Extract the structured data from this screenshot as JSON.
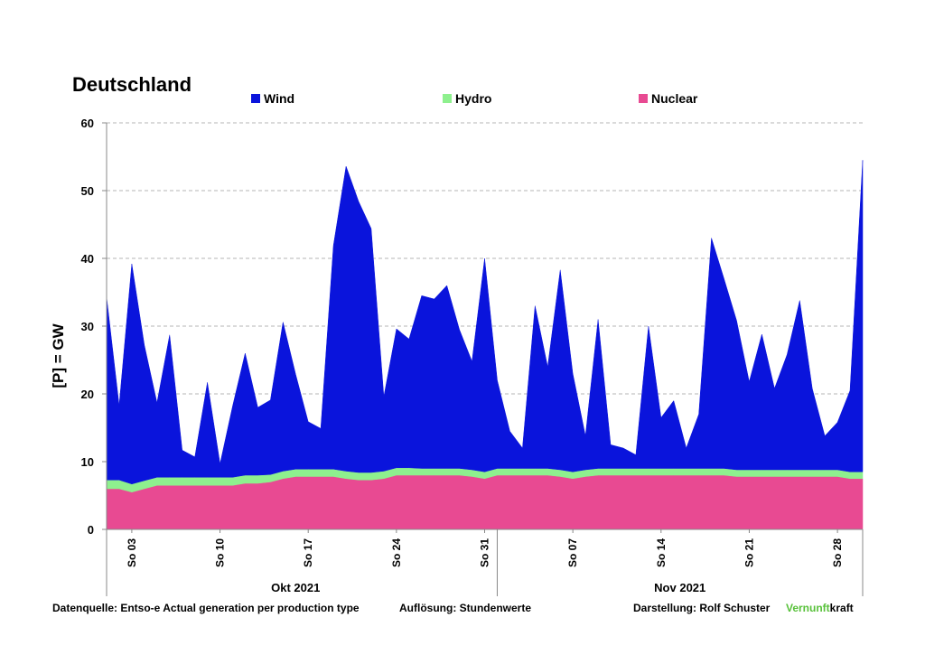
{
  "chart_data": {
    "type": "area",
    "title": "Deutschland",
    "ylabel": "[P]  =  GW",
    "xlabel": "",
    "ylim": [
      0,
      60
    ],
    "yticks": [
      0,
      10,
      20,
      30,
      40,
      50,
      60
    ],
    "grid": true,
    "legend_position": "top",
    "stacked": true,
    "x_range_days": [
      1,
      61
    ],
    "xtick_labels": [
      {
        "day": 3,
        "label": "So 03"
      },
      {
        "day": 10,
        "label": "So 10"
      },
      {
        "day": 17,
        "label": "So 17"
      },
      {
        "day": 24,
        "label": "So 24"
      },
      {
        "day": 31,
        "label": "So 31"
      },
      {
        "day": 38,
        "label": "So 07"
      },
      {
        "day": 45,
        "label": "So 14"
      },
      {
        "day": 52,
        "label": "So 21"
      },
      {
        "day": 59,
        "label": "So 28"
      }
    ],
    "months": [
      {
        "label": "Okt 2021",
        "center_day": 16
      },
      {
        "label": "Nov 2021",
        "center_day": 46.5
      }
    ],
    "month_separator_day": 32,
    "series": [
      {
        "name": "Nuclear",
        "color": "#e84a92",
        "x": [
          1,
          2,
          3,
          4,
          5,
          6,
          7,
          8,
          9,
          10,
          11,
          12,
          13,
          14,
          15,
          16,
          17,
          18,
          19,
          20,
          21,
          22,
          23,
          24,
          25,
          26,
          27,
          28,
          29,
          30,
          31,
          32,
          33,
          34,
          35,
          36,
          37,
          38,
          39,
          40,
          41,
          42,
          43,
          44,
          45,
          46,
          47,
          48,
          49,
          50,
          51,
          52,
          53,
          54,
          55,
          56,
          57,
          58,
          59,
          60,
          61
        ],
        "values": [
          6.0,
          6.0,
          5.5,
          6.0,
          6.5,
          6.5,
          6.5,
          6.5,
          6.5,
          6.5,
          6.5,
          6.8,
          6.8,
          7.0,
          7.5,
          7.8,
          7.8,
          7.8,
          7.8,
          7.5,
          7.3,
          7.3,
          7.5,
          8.0,
          8.0,
          8.0,
          8.0,
          8.0,
          8.0,
          7.8,
          7.5,
          8.0,
          8.0,
          8.0,
          8.0,
          8.0,
          7.8,
          7.5,
          7.8,
          8.0,
          8.0,
          8.0,
          8.0,
          8.0,
          8.0,
          8.0,
          8.0,
          8.0,
          8.0,
          8.0,
          7.8,
          7.8,
          7.8,
          7.8,
          7.8,
          7.8,
          7.8,
          7.8,
          7.8,
          7.5,
          7.5
        ]
      },
      {
        "name": "Hydro",
        "color": "#8ef08e",
        "x": [
          1,
          2,
          3,
          4,
          5,
          6,
          7,
          8,
          9,
          10,
          11,
          12,
          13,
          14,
          15,
          16,
          17,
          18,
          19,
          20,
          21,
          22,
          23,
          24,
          25,
          26,
          27,
          28,
          29,
          30,
          31,
          32,
          33,
          34,
          35,
          36,
          37,
          38,
          39,
          40,
          41,
          42,
          43,
          44,
          45,
          46,
          47,
          48,
          49,
          50,
          51,
          52,
          53,
          54,
          55,
          56,
          57,
          58,
          59,
          60,
          61
        ],
        "values": [
          1.3,
          1.3,
          1.2,
          1.2,
          1.2,
          1.2,
          1.2,
          1.2,
          1.2,
          1.2,
          1.2,
          1.2,
          1.2,
          1.1,
          1.1,
          1.1,
          1.1,
          1.1,
          1.1,
          1.1,
          1.1,
          1.1,
          1.1,
          1.1,
          1.1,
          1.0,
          1.0,
          1.0,
          1.0,
          1.0,
          1.0,
          1.0,
          1.0,
          1.0,
          1.0,
          1.0,
          1.0,
          1.0,
          1.0,
          1.0,
          1.0,
          1.0,
          1.0,
          1.0,
          1.0,
          1.0,
          1.0,
          1.0,
          1.0,
          1.0,
          1.0,
          1.0,
          1.0,
          1.0,
          1.0,
          1.0,
          1.0,
          1.0,
          1.0,
          1.0,
          1.0
        ]
      },
      {
        "name": "Wind",
        "color": "#0a14dc",
        "x": [
          1,
          2,
          3,
          4,
          5,
          6,
          7,
          8,
          9,
          10,
          11,
          12,
          13,
          14,
          15,
          16,
          17,
          18,
          19,
          20,
          21,
          22,
          23,
          24,
          25,
          26,
          27,
          28,
          29,
          30,
          31,
          32,
          33,
          34,
          35,
          36,
          37,
          38,
          39,
          40,
          41,
          42,
          43,
          44,
          45,
          46,
          47,
          48,
          49,
          50,
          51,
          52,
          53,
          54,
          55,
          56,
          57,
          58,
          59,
          60,
          61
        ],
        "values": [
          27.0,
          11.0,
          32.5,
          20.0,
          11.0,
          21.0,
          4.0,
          3.0,
          14.0,
          2.0,
          10.5,
          18.0,
          10.0,
          11.0,
          22.0,
          14.0,
          7.0,
          6.0,
          33.0,
          45.0,
          40.0,
          36.0,
          11.0,
          20.5,
          19.0,
          25.5,
          25.0,
          27.0,
          20.5,
          16.0,
          31.5,
          13.0,
          5.5,
          3.0,
          24.0,
          15.0,
          29.5,
          14.5,
          5.0,
          22.0,
          3.5,
          3.0,
          2.0,
          21.0,
          7.5,
          10.0,
          3.0,
          8.0,
          34.0,
          28.0,
          22.0,
          13.0,
          20.0,
          12.0,
          17.0,
          25.0,
          12.0,
          5.0,
          7.0,
          12.0,
          46.0
        ]
      }
    ],
    "legend": [
      {
        "name": "Wind",
        "color": "#0a14dc"
      },
      {
        "name": "Hydro",
        "color": "#8ef08e"
      },
      {
        "name": "Nuclear",
        "color": "#e84a92"
      }
    ]
  },
  "footer": {
    "source": "Datenquelle: Entso-e  Actual generation per production type",
    "resolution": "Auflösung: Stundenwerte",
    "credit": "Darstellung:  Rolf Schuster",
    "brand_green": "Vernunft",
    "brand_black": "kraft"
  }
}
